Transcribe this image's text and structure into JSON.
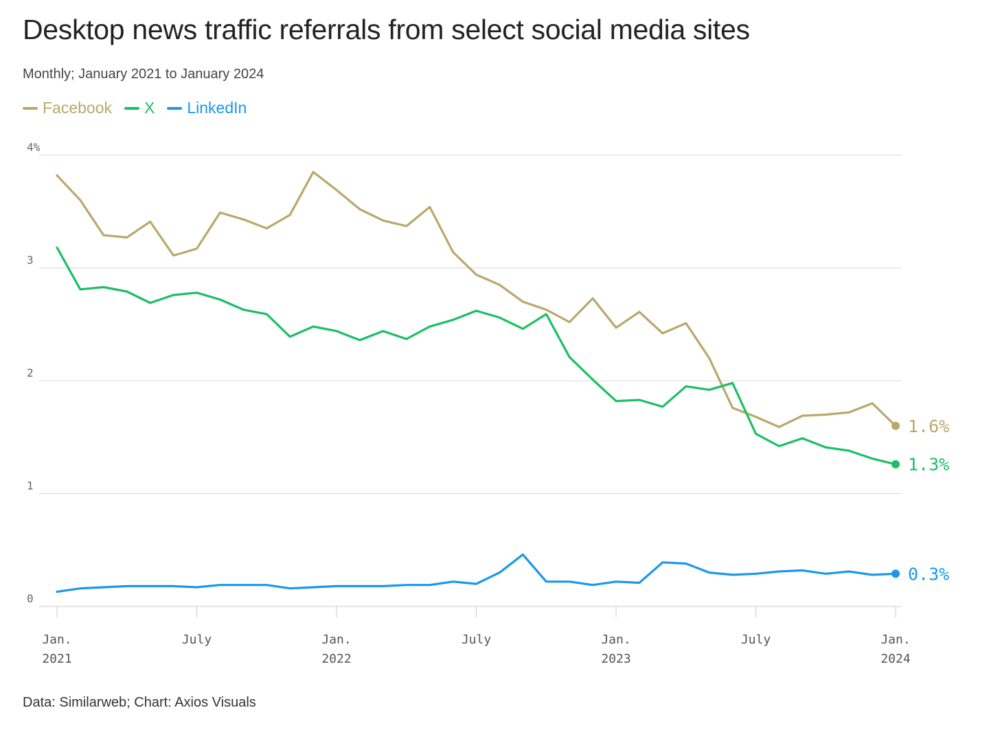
{
  "title": "Desktop news traffic referrals from select social media sites",
  "subtitle": "Monthly; January 2021 to January 2024",
  "source": "Data: Similarweb; Chart: Axios Visuals",
  "legend": [
    {
      "name": "Facebook",
      "color": "#b9a86a"
    },
    {
      "name": "X",
      "color": "#1bbf63"
    },
    {
      "name": "LinkedIn",
      "color": "#1a97ec"
    }
  ],
  "chart_data": {
    "type": "line",
    "x": [
      "Jan. 2021",
      "Feb. 2021",
      "Mar. 2021",
      "Apr. 2021",
      "May 2021",
      "June 2021",
      "July 2021",
      "Aug. 2021",
      "Sep. 2021",
      "Oct. 2021",
      "Nov. 2021",
      "Dec. 2021",
      "Jan. 2022",
      "Feb. 2022",
      "Mar. 2022",
      "Apr. 2022",
      "May 2022",
      "June 2022",
      "July 2022",
      "Aug. 2022",
      "Sep. 2022",
      "Oct. 2022",
      "Nov. 2022",
      "Dec. 2022",
      "Jan. 2023",
      "Feb. 2023",
      "Mar. 2023",
      "Apr. 2023",
      "May 2023",
      "June 2023",
      "July 2023",
      "Aug. 2023",
      "Sep. 2023",
      "Oct. 2023",
      "Nov. 2023",
      "Dec. 2023",
      "Jan. 2024"
    ],
    "x_ticks": [
      {
        "index": 0,
        "line1": "Jan.",
        "line2": "2021"
      },
      {
        "index": 6,
        "line1": "July",
        "line2": ""
      },
      {
        "index": 12,
        "line1": "Jan.",
        "line2": "2022"
      },
      {
        "index": 18,
        "line1": "July",
        "line2": ""
      },
      {
        "index": 24,
        "line1": "Jan.",
        "line2": "2023"
      },
      {
        "index": 30,
        "line1": "July",
        "line2": ""
      },
      {
        "index": 36,
        "line1": "Jan.",
        "line2": "2024"
      }
    ],
    "y_ticks": [
      {
        "value": 0,
        "label": "0"
      },
      {
        "value": 1,
        "label": "1"
      },
      {
        "value": 2,
        "label": "2"
      },
      {
        "value": 3,
        "label": "3"
      },
      {
        "value": 4,
        "label": "4%"
      }
    ],
    "ylim": [
      0,
      4
    ],
    "grid": true,
    "series": [
      {
        "name": "Facebook",
        "color": "#b9a86a",
        "end_label": "1.6%",
        "values": [
          3.82,
          3.6,
          3.29,
          3.27,
          3.41,
          3.11,
          3.17,
          3.49,
          3.43,
          3.35,
          3.47,
          3.85,
          3.69,
          3.52,
          3.42,
          3.37,
          3.54,
          3.14,
          2.94,
          2.85,
          2.7,
          2.63,
          2.52,
          2.73,
          2.47,
          2.61,
          2.42,
          2.51,
          2.2,
          1.76,
          1.68,
          1.59,
          1.69,
          1.7,
          1.72,
          1.8,
          1.6
        ]
      },
      {
        "name": "X",
        "color": "#1bbf63",
        "end_label": "1.3%",
        "values": [
          3.18,
          2.81,
          2.83,
          2.79,
          2.69,
          2.76,
          2.78,
          2.72,
          2.63,
          2.59,
          2.39,
          2.48,
          2.44,
          2.36,
          2.44,
          2.37,
          2.48,
          2.54,
          2.62,
          2.56,
          2.46,
          2.59,
          2.21,
          2.01,
          1.82,
          1.83,
          1.77,
          1.95,
          1.92,
          1.98,
          1.53,
          1.42,
          1.49,
          1.41,
          1.38,
          1.31,
          1.26
        ]
      },
      {
        "name": "LinkedIn",
        "color": "#1a97ec",
        "end_label": "0.3%",
        "values": [
          0.13,
          0.16,
          0.17,
          0.18,
          0.18,
          0.18,
          0.17,
          0.19,
          0.19,
          0.19,
          0.16,
          0.17,
          0.18,
          0.18,
          0.18,
          0.19,
          0.19,
          0.22,
          0.2,
          0.3,
          0.46,
          0.22,
          0.22,
          0.19,
          0.22,
          0.21,
          0.39,
          0.38,
          0.3,
          0.28,
          0.29,
          0.31,
          0.32,
          0.29,
          0.31,
          0.28,
          0.29
        ]
      }
    ]
  }
}
